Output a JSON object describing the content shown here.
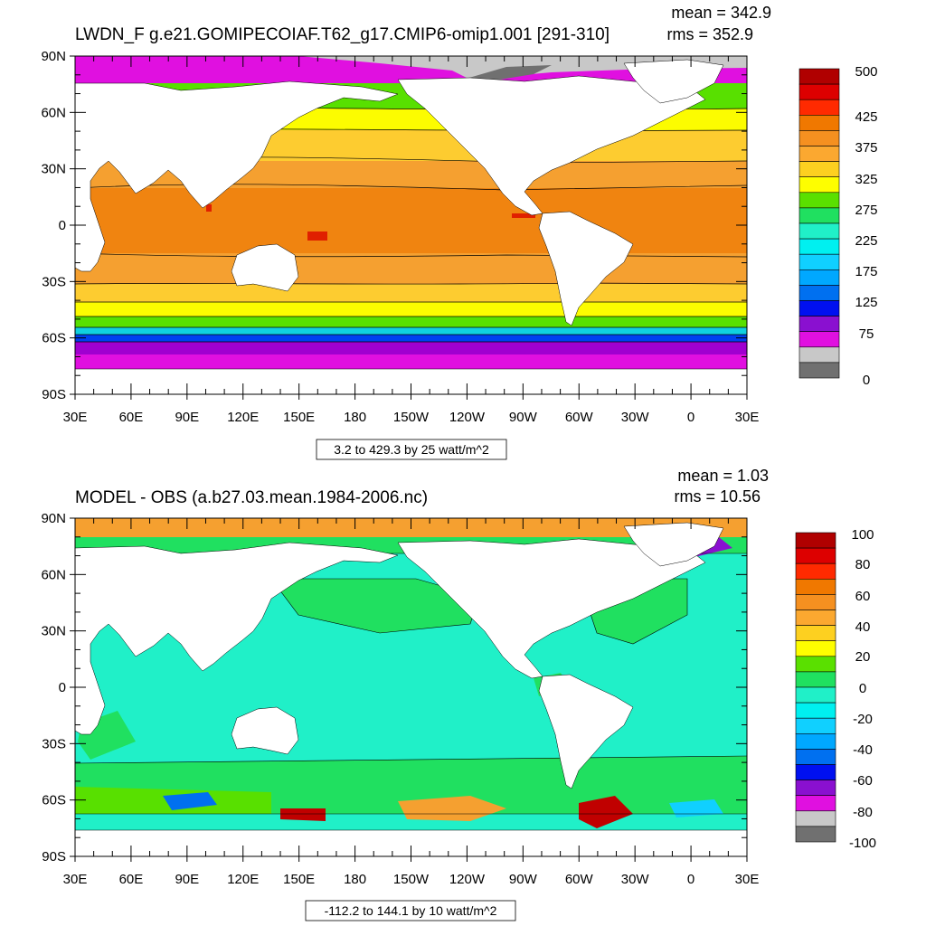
{
  "panels": [
    {
      "id": "top",
      "title": "LWDN_F g.e21.GOMIPECOIAF.T62_g17.CMIP6-omip1.001 [291-310]",
      "mean": "mean = 342.9",
      "rms": "rms = 352.9",
      "footer": "3.2 to 429.3 by 25 watt/m^2",
      "colorbar_labels": [
        "500",
        "425",
        "375",
        "325",
        "275",
        "225",
        "175",
        "125",
        "75",
        "0"
      ],
      "colorbar_colors": [
        "#b00000",
        "#dd0000",
        "#ff2a00",
        "#f07800",
        "#f59020",
        "#fba830",
        "#fdd020",
        "#fefe00",
        "#5ae000",
        "#20e060",
        "#20f0c8",
        "#00f0f0",
        "#10d0ff",
        "#00a8ff",
        "#0070f0",
        "#0010f0",
        "#8a10d0",
        "#e010e0",
        "#c8c8c8",
        "#707070"
      ],
      "field_colors": {
        "tropics": "#f08410",
        "subtropics": "#f5a030",
        "midlat": "#fdcc30",
        "yellow": "#fcfc00",
        "green": "#58e000",
        "green2": "#20e060",
        "cyan": "#10d0e0",
        "blue": "#0040f0",
        "purple": "#a000d0",
        "magenta": "#e010e0",
        "grey": "#c8c8c8",
        "darkgrey": "#707070",
        "red": "#e02000"
      }
    },
    {
      "id": "bottom",
      "title": "MODEL - OBS (a.b27.03.mean.1984-2006.nc)",
      "mean": "mean = 1.03",
      "rms": "rms = 10.56",
      "footer": "-112.2 to 144.1 by 10 watt/m^2",
      "colorbar_labels": [
        "100",
        "80",
        "60",
        "40",
        "20",
        "0",
        "-20",
        "-40",
        "-60",
        "-80",
        "-100"
      ],
      "colorbar_colors": [
        "#b00000",
        "#dd0000",
        "#ff2a00",
        "#f07800",
        "#f59020",
        "#fba830",
        "#fdd020",
        "#fefe00",
        "#5ae000",
        "#20e060",
        "#20f0c8",
        "#00f0f0",
        "#10d0ff",
        "#00a8ff",
        "#0070f0",
        "#0010f0",
        "#8a10d0",
        "#e010e0",
        "#c8c8c8",
        "#707070"
      ],
      "field_colors": {
        "base": "#20f0c8",
        "green": "#20e060",
        "lime": "#58e000",
        "orange": "#f5a030",
        "yellow": "#fcfc00",
        "red": "#c00000",
        "blue": "#0070f0",
        "cyan": "#00f0f0",
        "deepcyan": "#10d0ff",
        "purple": "#8a10d0"
      }
    }
  ],
  "axes": {
    "lat_labels": [
      "90N",
      "60N",
      "30N",
      "0",
      "30S",
      "60S",
      "90S"
    ],
    "lon_labels": [
      "30E",
      "60E",
      "90E",
      "120E",
      "150E",
      "180",
      "150W",
      "120W",
      "90W",
      "60W",
      "30W",
      "0",
      "30E"
    ]
  },
  "land_color": "#ffffff"
}
